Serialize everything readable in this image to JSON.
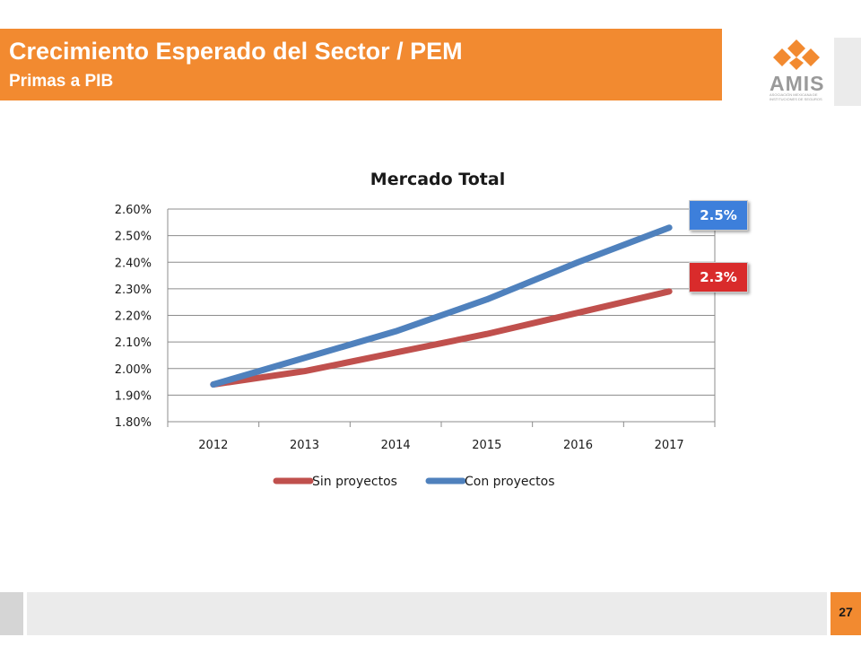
{
  "header": {
    "title": "Crecimiento Esperado del Sector / PEM",
    "subtitle": "Primas a PIB",
    "accent_color": "#F28A30"
  },
  "logo": {
    "text": "AMIS",
    "tagline": "ASOCIACIÓN MEXICANA DE INSTITUCIONES DE SEGUROS",
    "icon": "amis-logo-icon"
  },
  "footer": {
    "page_number": "27"
  },
  "callouts": {
    "con_label": "2.5%",
    "con_color": "#3D7FDB",
    "sin_label": "2.3%",
    "sin_color": "#D92B2B"
  },
  "chart_data": {
    "type": "line",
    "title": "Mercado Total",
    "xlabel": "",
    "ylabel": "",
    "categories": [
      "2012",
      "2013",
      "2014",
      "2015",
      "2016",
      "2017"
    ],
    "y_ticks": [
      "1.80%",
      "1.90%",
      "2.00%",
      "2.10%",
      "2.20%",
      "2.30%",
      "2.40%",
      "2.50%",
      "2.60%"
    ],
    "ylim": [
      1.8,
      2.6
    ],
    "grid": true,
    "legend_position": "bottom",
    "series": [
      {
        "name": "Sin proyectos",
        "color": "#C0504D",
        "values": [
          1.94,
          1.99,
          2.06,
          2.13,
          2.21,
          2.29
        ]
      },
      {
        "name": "Con proyectos",
        "color": "#4F81BD",
        "values": [
          1.94,
          2.04,
          2.14,
          2.26,
          2.4,
          2.53
        ]
      }
    ]
  }
}
